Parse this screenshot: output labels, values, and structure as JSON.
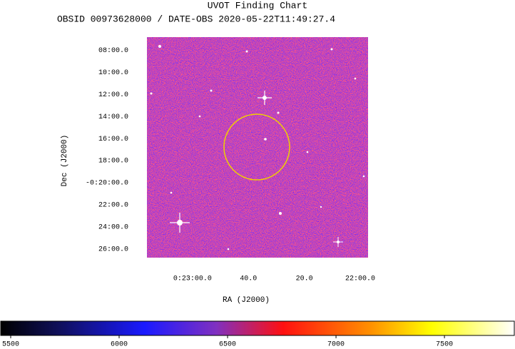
{
  "chart_data": {
    "type": "image",
    "title": "UVOT Finding Chart",
    "subtitle": "OBSID 00973628000 / DATE-OBS 2020-05-22T11:49:27.4",
    "x_label": "RA (J2000)",
    "y_label": "Dec (J2000)",
    "xlim": [
      1396.3,
      1317.2
    ],
    "xticks": [
      {
        "value": 1380,
        "label": "0:23:00.0"
      },
      {
        "value": 1360,
        "label": "40.0"
      },
      {
        "value": 1340,
        "label": "20.0"
      },
      {
        "value": 1320,
        "label": "22:00.0"
      }
    ],
    "ylim": [
      -26.8,
      -6.8
    ],
    "yticks": [
      {
        "value": -8,
        "label": "08:00.0"
      },
      {
        "value": -10,
        "label": "10:00.0"
      },
      {
        "value": -12,
        "label": "12:00.0"
      },
      {
        "value": -14,
        "label": "14:00.0"
      },
      {
        "value": -16,
        "label": "16:00.0"
      },
      {
        "value": -18,
        "label": "18:00.0"
      },
      {
        "value": -20,
        "label": "-0:20:00.0"
      },
      {
        "value": -22,
        "label": "22:00.0"
      },
      {
        "value": -24,
        "label": "24:00.0"
      },
      {
        "value": -26,
        "label": "26:00.0"
      }
    ],
    "clim": [
      5454,
      7822
    ],
    "cticks": [
      5500,
      6000,
      6500,
      7000,
      7500
    ]
  }
}
